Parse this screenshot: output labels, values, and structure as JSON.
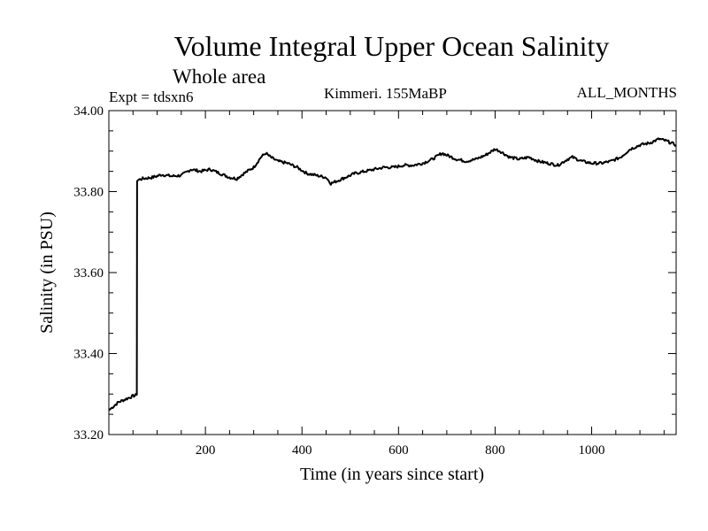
{
  "chart_data": {
    "type": "line",
    "title": "Volume Integral Upper Ocean Salinity",
    "subtitle": "Whole area",
    "experiment_label": "Expt = tdsxn6",
    "region_label": "Kimmeri. 155MaBP",
    "period_label": "ALL_MONTHS",
    "xlabel": "Time (in years since start)",
    "ylabel": "Salinity (in PSU)",
    "xlim": [
      0,
      1175
    ],
    "ylim": [
      33.2,
      34.0
    ],
    "x_ticks": [
      200,
      400,
      600,
      800,
      1000
    ],
    "x_tick_labels": [
      "200",
      "400",
      "600",
      "800",
      "1000"
    ],
    "y_ticks": [
      33.2,
      33.4,
      33.6,
      33.8,
      34.0
    ],
    "y_tick_labels": [
      "33.20",
      "33.40",
      "33.60",
      "33.80",
      "34.00"
    ],
    "grid": false,
    "series": [
      {
        "name": "Salinity",
        "x": [
          0,
          10,
          20,
          30,
          40,
          50,
          58,
          58.5,
          70,
          90,
          110,
          130,
          150,
          170,
          190,
          210,
          230,
          250,
          265,
          280,
          300,
          315,
          325,
          335,
          350,
          370,
          390,
          410,
          430,
          450,
          460,
          470,
          490,
          510,
          530,
          550,
          570,
          590,
          610,
          630,
          650,
          670,
          690,
          700,
          720,
          740,
          760,
          780,
          800,
          810,
          830,
          850,
          870,
          890,
          910,
          930,
          950,
          960,
          980,
          1000,
          1020,
          1040,
          1060,
          1080,
          1100,
          1120,
          1140,
          1155,
          1165,
          1175
        ],
        "y": [
          33.26,
          33.27,
          33.28,
          33.285,
          33.29,
          33.295,
          33.298,
          33.828,
          33.832,
          33.835,
          33.842,
          33.838,
          33.84,
          33.855,
          33.85,
          33.855,
          33.845,
          33.835,
          33.832,
          33.845,
          33.86,
          33.885,
          33.895,
          33.885,
          33.875,
          33.87,
          33.86,
          33.845,
          33.84,
          33.835,
          33.82,
          33.825,
          33.835,
          33.845,
          33.85,
          33.855,
          33.86,
          33.86,
          33.865,
          33.865,
          33.87,
          33.88,
          33.895,
          33.89,
          33.88,
          33.875,
          33.88,
          33.89,
          33.905,
          33.9,
          33.885,
          33.88,
          33.885,
          33.875,
          33.87,
          33.865,
          33.88,
          33.885,
          33.875,
          33.87,
          33.87,
          33.875,
          33.885,
          33.905,
          33.915,
          33.92,
          33.93,
          33.925,
          33.92,
          33.915
        ]
      }
    ]
  }
}
